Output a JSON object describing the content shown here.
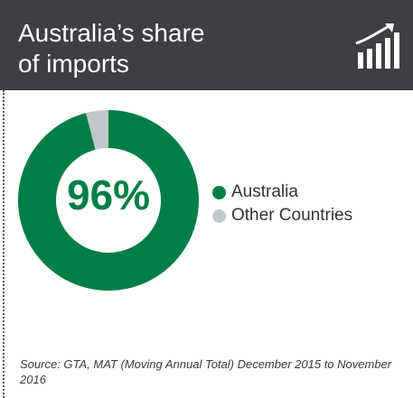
{
  "header": {
    "title_line1": "Australia’s share",
    "title_line2": "of imports",
    "icon": "bar-chart-growth-icon",
    "background": "#3d3f42"
  },
  "chart_data": {
    "type": "pie",
    "donut": true,
    "center_label": "96%",
    "categories": [
      "Australia",
      "Other Countries"
    ],
    "values": [
      96,
      4
    ],
    "colors": [
      "#007e47",
      "#c4c7c9"
    ],
    "legend_position": "right"
  },
  "source": "Source: GTA, MAT (Moving Annual Total) December 2015 to November 2016"
}
